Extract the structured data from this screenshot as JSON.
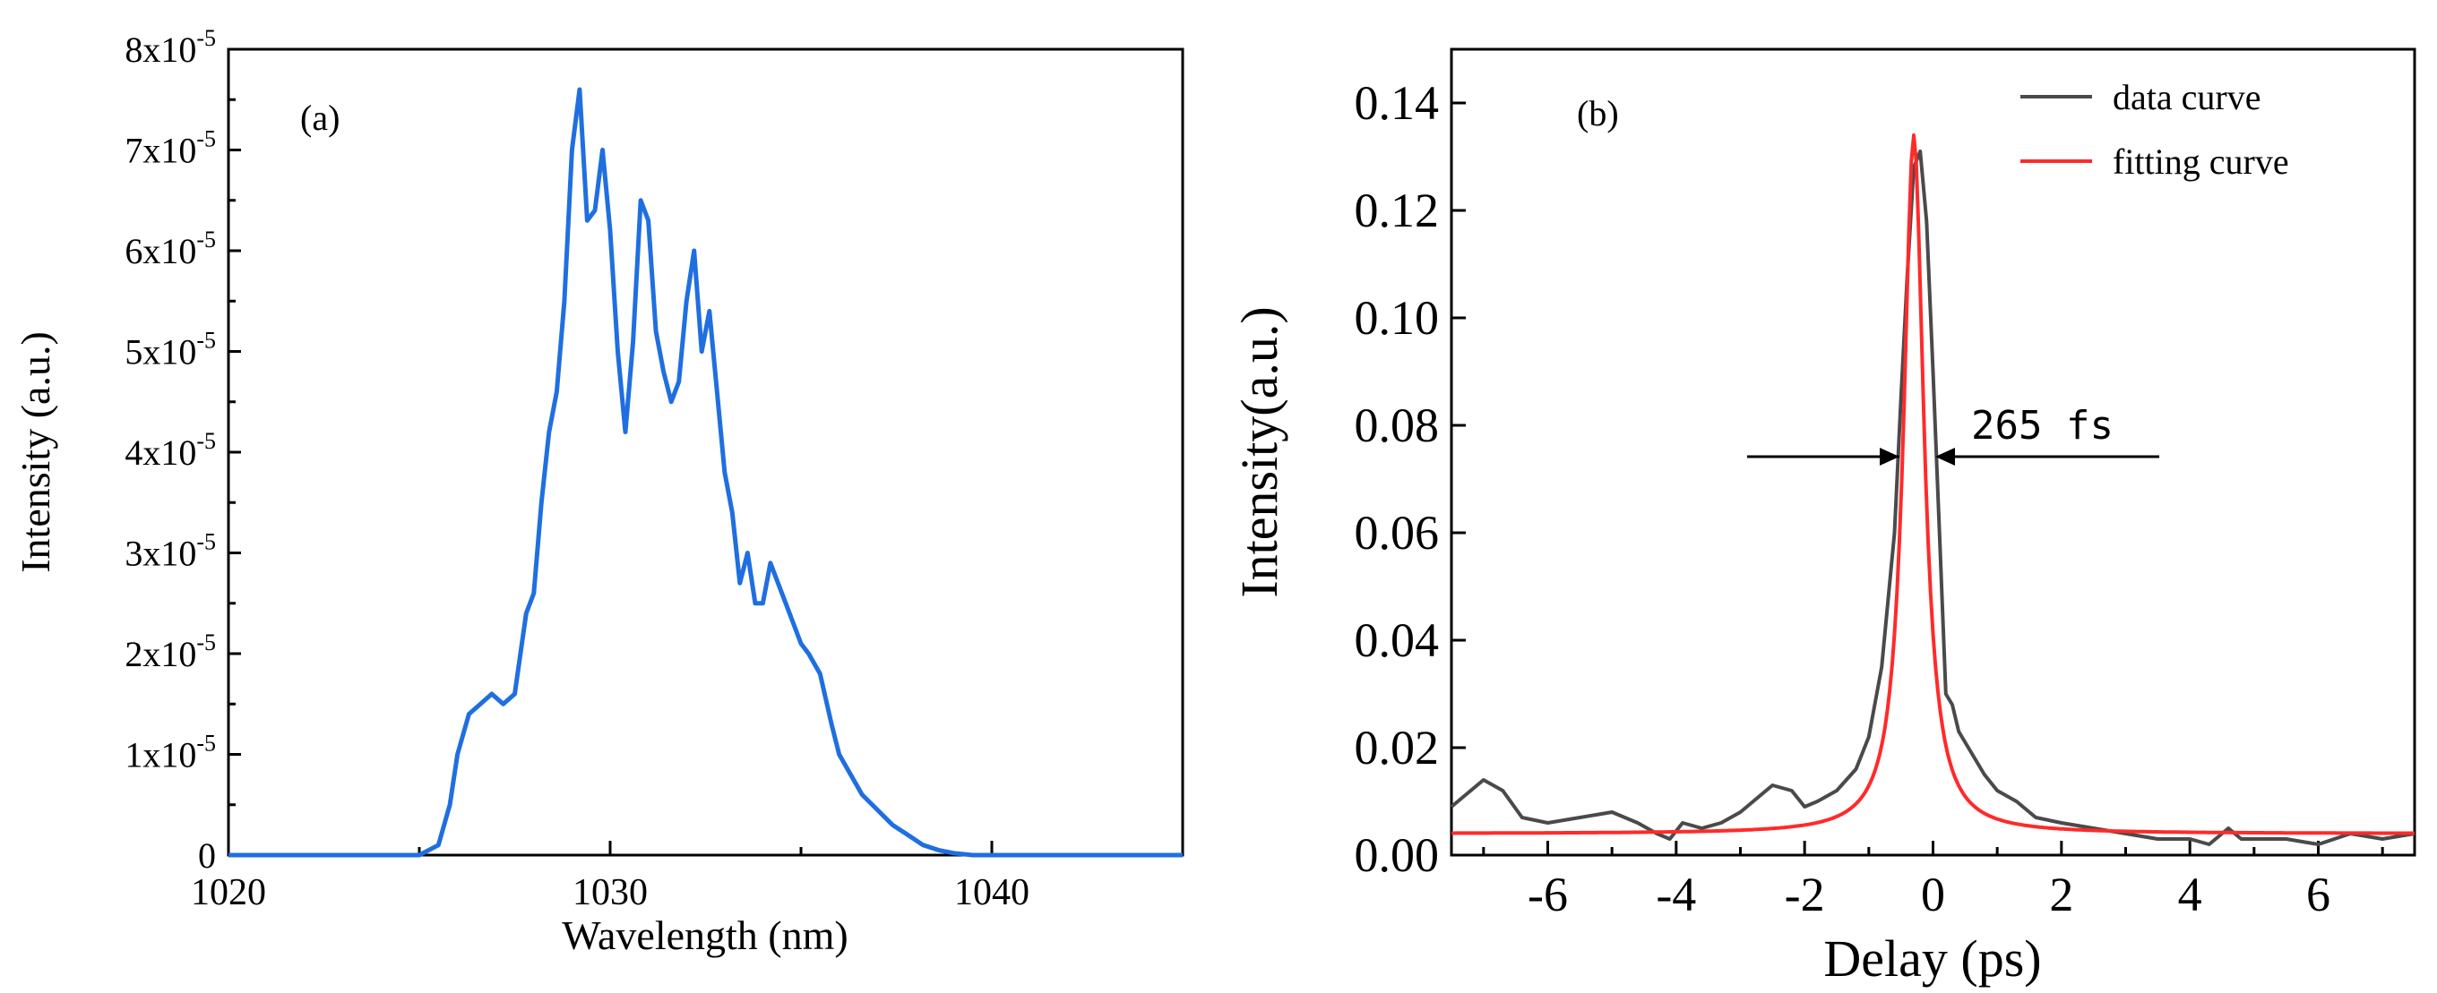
{
  "colors": {
    "spectrum": "#1f6fe0",
    "data_curve": "#4a4a4a",
    "fit_curve": "#ff2a2a",
    "axis": "#000000"
  },
  "chart_data": [
    {
      "type": "line",
      "panel_label": "(a)",
      "xlabel": "Wavelength (nm)",
      "ylabel": "Intensity (a.u.)",
      "xlim": [
        1020,
        1045
      ],
      "ylim": [
        0,
        8e-05
      ],
      "xticks": [
        1020,
        1030,
        1040
      ],
      "yticks": [
        {
          "value": 0,
          "base": "0",
          "exp": ""
        },
        {
          "value": 1e-05,
          "base": "1x10",
          "exp": "-5"
        },
        {
          "value": 2e-05,
          "base": "2x10",
          "exp": "-5"
        },
        {
          "value": 3e-05,
          "base": "3x10",
          "exp": "-5"
        },
        {
          "value": 4e-05,
          "base": "4x10",
          "exp": "-5"
        },
        {
          "value": 5e-05,
          "base": "5x10",
          "exp": "-5"
        },
        {
          "value": 6e-05,
          "base": "6x10",
          "exp": "-5"
        },
        {
          "value": 7e-05,
          "base": "7x10",
          "exp": "-5"
        },
        {
          "value": 8e-05,
          "base": "8x10",
          "exp": "-5"
        }
      ],
      "series": [
        {
          "name": "spectrum",
          "x": [
            1020,
            1025.0,
            1025.5,
            1025.8,
            1026.0,
            1026.3,
            1026.6,
            1026.9,
            1027.2,
            1027.5,
            1027.8,
            1028.0,
            1028.2,
            1028.4,
            1028.6,
            1028.8,
            1029.0,
            1029.2,
            1029.4,
            1029.6,
            1029.8,
            1030.0,
            1030.2,
            1030.4,
            1030.6,
            1030.8,
            1031.0,
            1031.2,
            1031.4,
            1031.6,
            1031.8,
            1032.0,
            1032.2,
            1032.4,
            1032.6,
            1032.8,
            1033.0,
            1033.2,
            1033.4,
            1033.6,
            1033.8,
            1034.0,
            1034.2,
            1034.4,
            1034.6,
            1034.8,
            1035.0,
            1035.2,
            1035.5,
            1035.8,
            1036.0,
            1036.3,
            1036.6,
            1037.0,
            1037.4,
            1037.8,
            1038.2,
            1038.6,
            1039.0,
            1039.5,
            1040.0,
            1045
          ],
          "values": [
            0,
            0,
            1e-06,
            5e-06,
            1e-05,
            1.4e-05,
            1.5e-05,
            1.6e-05,
            1.5e-05,
            1.6e-05,
            2.4e-05,
            2.6e-05,
            3.5e-05,
            4.2e-05,
            4.6e-05,
            5.5e-05,
            7e-05,
            7.6e-05,
            6.3e-05,
            6.4e-05,
            7e-05,
            6.2e-05,
            5e-05,
            4.2e-05,
            5.1e-05,
            6.5e-05,
            6.3e-05,
            5.2e-05,
            4.8e-05,
            4.5e-05,
            4.7e-05,
            5.5e-05,
            6e-05,
            5e-05,
            5.4e-05,
            4.6e-05,
            3.8e-05,
            3.4e-05,
            2.7e-05,
            3e-05,
            2.5e-05,
            2.5e-05,
            2.9e-05,
            2.7e-05,
            2.5e-05,
            2.3e-05,
            2.1e-05,
            2e-05,
            1.8e-05,
            1.3e-05,
            1e-05,
            8e-06,
            6e-06,
            4.5e-06,
            3e-06,
            2e-06,
            1e-06,
            5e-07,
            2e-07,
            0,
            0,
            0
          ]
        }
      ]
    },
    {
      "type": "line",
      "panel_label": "(b)",
      "xlabel": "Delay (ps)",
      "ylabel": "Intensity(a.u.)",
      "xlim": [
        -7.5,
        7.5
      ],
      "ylim": [
        0,
        0.15
      ],
      "xticks": [
        -6,
        -4,
        -2,
        0,
        2,
        4,
        6
      ],
      "xtick_labels": [
        "-6",
        "-4",
        "-2",
        "0",
        "2",
        "4",
        "6"
      ],
      "yticks": [
        0.0,
        0.02,
        0.04,
        0.06,
        0.08,
        0.1,
        0.12,
        0.14
      ],
      "ytick_labels": [
        "0.00",
        "0.02",
        "0.04",
        "0.06",
        "0.08",
        "0.10",
        "0.12",
        "0.14"
      ],
      "legend": [
        "data curve",
        "fitting curve"
      ],
      "annotation": "265  fs",
      "series": [
        {
          "name": "data curve",
          "x": [
            -7.5,
            -7.3,
            -7.0,
            -6.7,
            -6.4,
            -6.0,
            -5.5,
            -5.0,
            -4.6,
            -4.3,
            -4.1,
            -3.9,
            -3.6,
            -3.3,
            -3.0,
            -2.8,
            -2.5,
            -2.2,
            -2.0,
            -1.8,
            -1.5,
            -1.2,
            -1.0,
            -0.8,
            -0.6,
            -0.5,
            -0.4,
            -0.3,
            -0.2,
            -0.1,
            0.0,
            0.1,
            0.2,
            0.3,
            0.4,
            0.6,
            0.8,
            1.0,
            1.3,
            1.6,
            2.0,
            2.5,
            3.0,
            3.5,
            4.0,
            4.3,
            4.6,
            4.8,
            5.0,
            5.5,
            6.0,
            6.5,
            7.0,
            7.5
          ],
          "values": [
            0.009,
            0.011,
            0.014,
            0.012,
            0.007,
            0.006,
            0.007,
            0.008,
            0.006,
            0.004,
            0.003,
            0.006,
            0.005,
            0.006,
            0.008,
            0.01,
            0.013,
            0.012,
            0.009,
            0.01,
            0.012,
            0.016,
            0.022,
            0.035,
            0.06,
            0.085,
            0.108,
            0.128,
            0.131,
            0.118,
            0.09,
            0.06,
            0.03,
            0.028,
            0.023,
            0.019,
            0.015,
            0.012,
            0.01,
            0.007,
            0.006,
            0.005,
            0.004,
            0.003,
            0.003,
            0.002,
            0.005,
            0.003,
            0.003,
            0.003,
            0.002,
            0.004,
            0.003,
            0.004
          ]
        },
        {
          "name": "fitting curve",
          "model": "sech-like peak",
          "center": -0.3,
          "peak": 0.134,
          "baseline": 0.004
        }
      ]
    }
  ]
}
